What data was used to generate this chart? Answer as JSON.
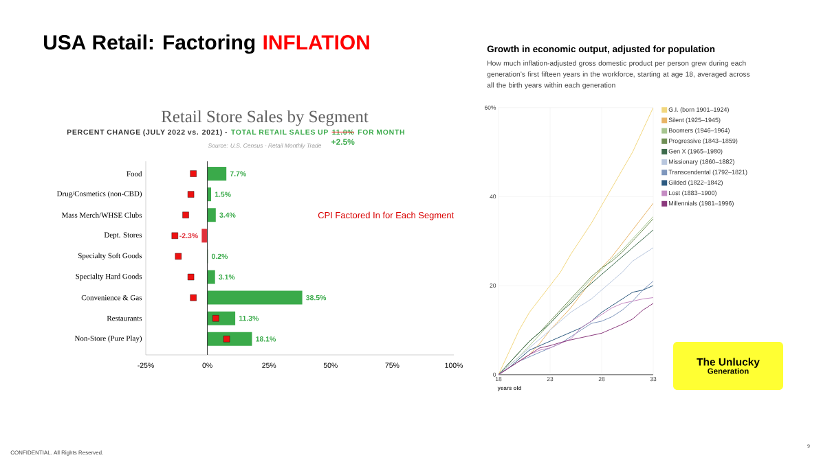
{
  "chart_data": [
    {
      "type": "bar",
      "orientation": "horizontal",
      "title": "Retail Store Sales by Segment",
      "subtitle": "PERCENT CHANGE (JULY 2022 vs. 2021) -",
      "categories": [
        "Food",
        "Drug/Cosmetics (non-CBD)",
        "Mass Merch/WHSE Clubs",
        "Dept. Stores",
        "Specialty Soft Goods",
        "Specialty Hard Goods",
        "Convenience & Gas",
        "Restaurants",
        "Non-Store (Pure Play)"
      ],
      "series": [
        {
          "type": "bar",
          "color": "#3aaa4a",
          "colors": [
            "#3aaa4a",
            "#3aaa4a",
            "#3aaa4a",
            "#e0303a",
            "#3aaa4a",
            "#3aaa4a",
            "#3aaa4a",
            "#3aaa4a",
            "#3aaa4a"
          ],
          "values": [
            7.7,
            1.5,
            3.4,
            -2.3,
            0.2,
            3.1,
            38.5,
            11.3,
            18.1
          ],
          "value_labels": [
            "7.7%",
            "1.5%",
            "3.4%",
            "-2.3%",
            "0.2%",
            "3.1%",
            "38.5%",
            "11.3%",
            "18.1%"
          ]
        },
        {
          "type": "scatter",
          "color": "#ee1111",
          "marker": "square",
          "values": [
            -5.7,
            -6.7,
            -8.8,
            -13.2,
            -11.8,
            -6.7,
            -5.7,
            3.4,
            7.8
          ]
        }
      ],
      "xlim": [
        -25,
        100
      ],
      "xticks": [
        {
          "value": -25,
          "label": "-25%"
        },
        {
          "value": 0,
          "label": "0%"
        },
        {
          "value": 25,
          "label": "25%"
        },
        {
          "value": 50,
          "label": "50%"
        },
        {
          "value": 75,
          "label": "75%"
        },
        {
          "value": 100,
          "label": "100%"
        }
      ],
      "ref_lines": [
        {
          "axis": "x",
          "value": 0,
          "color": "#333333"
        }
      ],
      "annotations": [
        "USA Retail: Factoring",
        "INFLATION",
        "TOTAL RETAIL SALES UP",
        "11.0%",
        "FOR MONTH",
        "+2.5%",
        "Source: U.S. Census - Retail Monthly Trade",
        "CPI Factored In for Each Segment",
        "CONFIDENTIAL. All Rights Reserved.",
        "9"
      ]
    },
    {
      "type": "line",
      "title": "Growth in economic output, adjusted for population",
      "subtitle": "How much inflation-adjusted gross domestic product per person grew during each generation’s first fifteen years in the workforce, starting at age 18, averaged across all the birth years within each generation",
      "xlabel": "years old",
      "x": [
        18,
        19,
        20,
        21,
        22,
        23,
        24,
        25,
        26,
        27,
        28,
        29,
        30,
        31,
        32,
        33
      ],
      "series": [
        {
          "name": "G.I. (born 1901–1924)",
          "color": "#f2d77e",
          "values": [
            0,
            5,
            10,
            14,
            17,
            20,
            23,
            27,
            30.5,
            34,
            38,
            42,
            46,
            50,
            55,
            60
          ]
        },
        {
          "name": "Silent (1925–1945)",
          "color": "#e8b466",
          "values": [
            0,
            1.5,
            3,
            4.5,
            7,
            10,
            12.5,
            15,
            18,
            21,
            24,
            26.5,
            29.5,
            32.5,
            35.5,
            38.5
          ]
        },
        {
          "name": "Boomers (1946–1964)",
          "color": "#a6c58f",
          "values": [
            0,
            2,
            4,
            6.5,
            9,
            11.5,
            14,
            16.5,
            19,
            21.5,
            23.5,
            26,
            28,
            30.5,
            33,
            35.5
          ]
        },
        {
          "name": "Progressive (1843–1859)",
          "color": "#6f8f55",
          "values": [
            0,
            2.5,
            5,
            7.5,
            9.5,
            12,
            14.5,
            17,
            19.5,
            22,
            24,
            25.5,
            27.5,
            30,
            32.5,
            35
          ]
        },
        {
          "name": "Gen X (1965–1980)",
          "color": "#3d6b4c",
          "values": [
            0,
            2.5,
            5,
            7.5,
            9.5,
            11.5,
            14,
            16,
            18.5,
            20.5,
            22.5,
            24.5,
            26.5,
            28.5,
            30.5,
            32.5
          ]
        },
        {
          "name": "Missionary (1860–1882)",
          "color": "#b9c7de",
          "values": [
            0,
            2,
            4,
            6,
            8,
            10,
            12,
            14,
            15.5,
            17,
            19,
            21,
            23,
            25.5,
            27,
            28.5
          ]
        },
        {
          "name": "Transcendental (1792–1821)",
          "color": "#7f97bd",
          "values": [
            0,
            1.5,
            3,
            4,
            5,
            6,
            7,
            8.5,
            10,
            11.5,
            12,
            13,
            14.5,
            16.5,
            19,
            21
          ]
        },
        {
          "name": "Gilded (1822–1842)",
          "color": "#2d5a80",
          "values": [
            0,
            1.5,
            3.5,
            5.5,
            6.5,
            7.5,
            8.5,
            9.5,
            10.5,
            12,
            14,
            15.5,
            17,
            18.5,
            19,
            20
          ]
        },
        {
          "name": "Lost (1883–1900)",
          "color": "#c58cc3",
          "values": [
            0,
            1.5,
            3,
            4.5,
            5.5,
            6,
            7,
            8,
            10.5,
            12,
            13.5,
            15,
            16,
            16.5,
            17,
            17.3
          ]
        },
        {
          "name": "Millennials (1981–1996)",
          "color": "#8b3a7d",
          "values": [
            0,
            1.5,
            3,
            4.5,
            6,
            6.5,
            7.2,
            7.8,
            8.3,
            8.8,
            9.3,
            10.3,
            11.3,
            12.5,
            14.5,
            16
          ]
        }
      ],
      "xlim": [
        18,
        33
      ],
      "ylim": [
        0,
        60
      ],
      "xticks": [
        18,
        23,
        28,
        33
      ],
      "yticks": [
        0,
        20,
        40,
        {
          "value": 60,
          "label": "60%"
        }
      ],
      "grid": true,
      "legend": "right",
      "annotations": [
        "The Unlucky",
        "Generation"
      ]
    }
  ]
}
